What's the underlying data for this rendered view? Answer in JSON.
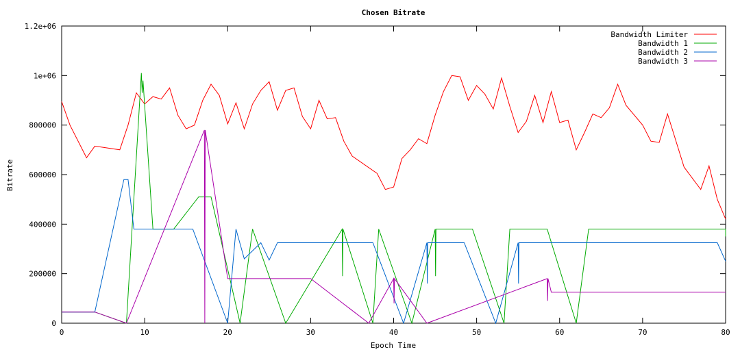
{
  "chart_data": {
    "type": "line",
    "title": "Chosen Bitrate",
    "xlabel": "Epoch Time",
    "ylabel": "Bitrate",
    "xlim": [
      0,
      80
    ],
    "ylim": [
      0,
      1200000
    ],
    "grid": false,
    "legend_position": "top-right",
    "x_ticks": [
      {
        "value": 0,
        "label": "0"
      },
      {
        "value": 10,
        "label": "10"
      },
      {
        "value": 20,
        "label": "20"
      },
      {
        "value": 30,
        "label": "30"
      },
      {
        "value": 40,
        "label": "40"
      },
      {
        "value": 50,
        "label": "50"
      },
      {
        "value": 60,
        "label": "60"
      },
      {
        "value": 70,
        "label": "70"
      },
      {
        "value": 80,
        "label": "80"
      }
    ],
    "y_ticks": [
      {
        "value": 0,
        "label": "0"
      },
      {
        "value": 200000,
        "label": "200000"
      },
      {
        "value": 400000,
        "label": "400000"
      },
      {
        "value": 600000,
        "label": "600000"
      },
      {
        "value": 800000,
        "label": "800000"
      },
      {
        "value": 1000000,
        "label": "1e+06"
      },
      {
        "value": 1200000,
        "label": "1.2e+06"
      }
    ],
    "series": [
      {
        "name": "Bandwidth Limiter",
        "color": "#ff0000",
        "points": [
          [
            0,
            895000
          ],
          [
            1,
            800000
          ],
          [
            3,
            668000
          ],
          [
            4,
            715000
          ],
          [
            7,
            700000
          ],
          [
            8,
            800000
          ],
          [
            9,
            930000
          ],
          [
            10,
            885000
          ],
          [
            11,
            915000
          ],
          [
            12,
            905000
          ],
          [
            13,
            950000
          ],
          [
            14,
            840000
          ],
          [
            15,
            785000
          ],
          [
            16,
            800000
          ],
          [
            17,
            900000
          ],
          [
            18,
            965000
          ],
          [
            19,
            920000
          ],
          [
            20,
            805000
          ],
          [
            21,
            890000
          ],
          [
            22,
            785000
          ],
          [
            23,
            885000
          ],
          [
            24,
            940000
          ],
          [
            25,
            975000
          ],
          [
            26,
            860000
          ],
          [
            27,
            940000
          ],
          [
            28,
            950000
          ],
          [
            29,
            835000
          ],
          [
            30,
            785000
          ],
          [
            31,
            900000
          ],
          [
            32,
            825000
          ],
          [
            33,
            830000
          ],
          [
            34,
            735000
          ],
          [
            35,
            675000
          ],
          [
            38,
            605000
          ],
          [
            39,
            540000
          ],
          [
            40,
            550000
          ],
          [
            41,
            665000
          ],
          [
            42,
            700000
          ],
          [
            43,
            745000
          ],
          [
            44,
            725000
          ],
          [
            45,
            840000
          ],
          [
            46,
            935000
          ],
          [
            47,
            1000000
          ],
          [
            48,
            995000
          ],
          [
            49,
            900000
          ],
          [
            50,
            960000
          ],
          [
            51,
            925000
          ],
          [
            52,
            865000
          ],
          [
            53,
            990000
          ],
          [
            54,
            875000
          ],
          [
            55,
            770000
          ],
          [
            56,
            815000
          ],
          [
            57,
            920000
          ],
          [
            58,
            810000
          ],
          [
            59,
            935000
          ],
          [
            60,
            810000
          ],
          [
            61,
            820000
          ],
          [
            62,
            700000
          ],
          [
            63,
            770000
          ],
          [
            64,
            845000
          ],
          [
            65,
            830000
          ],
          [
            66,
            870000
          ],
          [
            67,
            965000
          ],
          [
            68,
            880000
          ],
          [
            70,
            800000
          ],
          [
            71,
            735000
          ],
          [
            72,
            730000
          ],
          [
            73,
            845000
          ],
          [
            75,
            630000
          ],
          [
            77,
            540000
          ],
          [
            78,
            635000
          ],
          [
            79,
            500000
          ],
          [
            80,
            420000
          ]
        ]
      },
      {
        "name": "Bandwidth 1",
        "color": "#00aa00",
        "points": [
          [
            0,
            45000
          ],
          [
            4,
            45000
          ],
          [
            7.8,
            0
          ],
          [
            9.6,
            1010000
          ],
          [
            9.7,
            930000
          ],
          [
            9.8,
            980000
          ],
          [
            11,
            380000
          ],
          [
            13.5,
            380000
          ],
          [
            16.5,
            510000
          ],
          [
            18,
            510000
          ],
          [
            21.5,
            0
          ],
          [
            23,
            380000
          ],
          [
            27,
            0
          ],
          [
            33.8,
            380000
          ],
          [
            33.85,
            190000
          ],
          [
            33.9,
            380000
          ],
          [
            37.5,
            0
          ],
          [
            38.2,
            380000
          ],
          [
            42.2,
            0
          ],
          [
            45,
            380000
          ],
          [
            45.05,
            190000
          ],
          [
            45.1,
            380000
          ],
          [
            49.5,
            380000
          ],
          [
            53.3,
            0
          ],
          [
            54,
            380000
          ],
          [
            58.5,
            380000
          ],
          [
            62,
            0
          ],
          [
            63.5,
            380000
          ],
          [
            80,
            380000
          ],
          [
            80,
            350000
          ]
        ]
      },
      {
        "name": "Bandwidth 2",
        "color": "#0066cc",
        "points": [
          [
            0,
            45000
          ],
          [
            4,
            45000
          ],
          [
            7.5,
            580000
          ],
          [
            8,
            580000
          ],
          [
            8.7,
            380000
          ],
          [
            15.8,
            380000
          ],
          [
            20,
            0
          ],
          [
            21,
            380000
          ],
          [
            22,
            260000
          ],
          [
            24,
            325000
          ],
          [
            25,
            255000
          ],
          [
            26,
            325000
          ],
          [
            37.5,
            325000
          ],
          [
            41.2,
            0
          ],
          [
            44,
            325000
          ],
          [
            44.05,
            160000
          ],
          [
            44.1,
            325000
          ],
          [
            48.5,
            325000
          ],
          [
            52.3,
            0
          ],
          [
            55,
            325000
          ],
          [
            55.05,
            160000
          ],
          [
            55.1,
            325000
          ],
          [
            79,
            325000
          ],
          [
            80,
            250000
          ]
        ]
      },
      {
        "name": "Bandwidth 3",
        "color": "#aa00aa",
        "points": [
          [
            0,
            45000
          ],
          [
            4,
            45000
          ],
          [
            7.8,
            0
          ],
          [
            17.2,
            780000
          ],
          [
            17.25,
            0
          ],
          [
            17.3,
            780000
          ],
          [
            20,
            180000
          ],
          [
            30,
            180000
          ],
          [
            37,
            0
          ],
          [
            40,
            180000
          ],
          [
            40.05,
            80000
          ],
          [
            40.1,
            180000
          ],
          [
            44,
            0
          ],
          [
            58.5,
            180000
          ],
          [
            58.55,
            90000
          ],
          [
            58.6,
            180000
          ],
          [
            59,
            125000
          ],
          [
            80,
            125000
          ]
        ]
      }
    ]
  }
}
